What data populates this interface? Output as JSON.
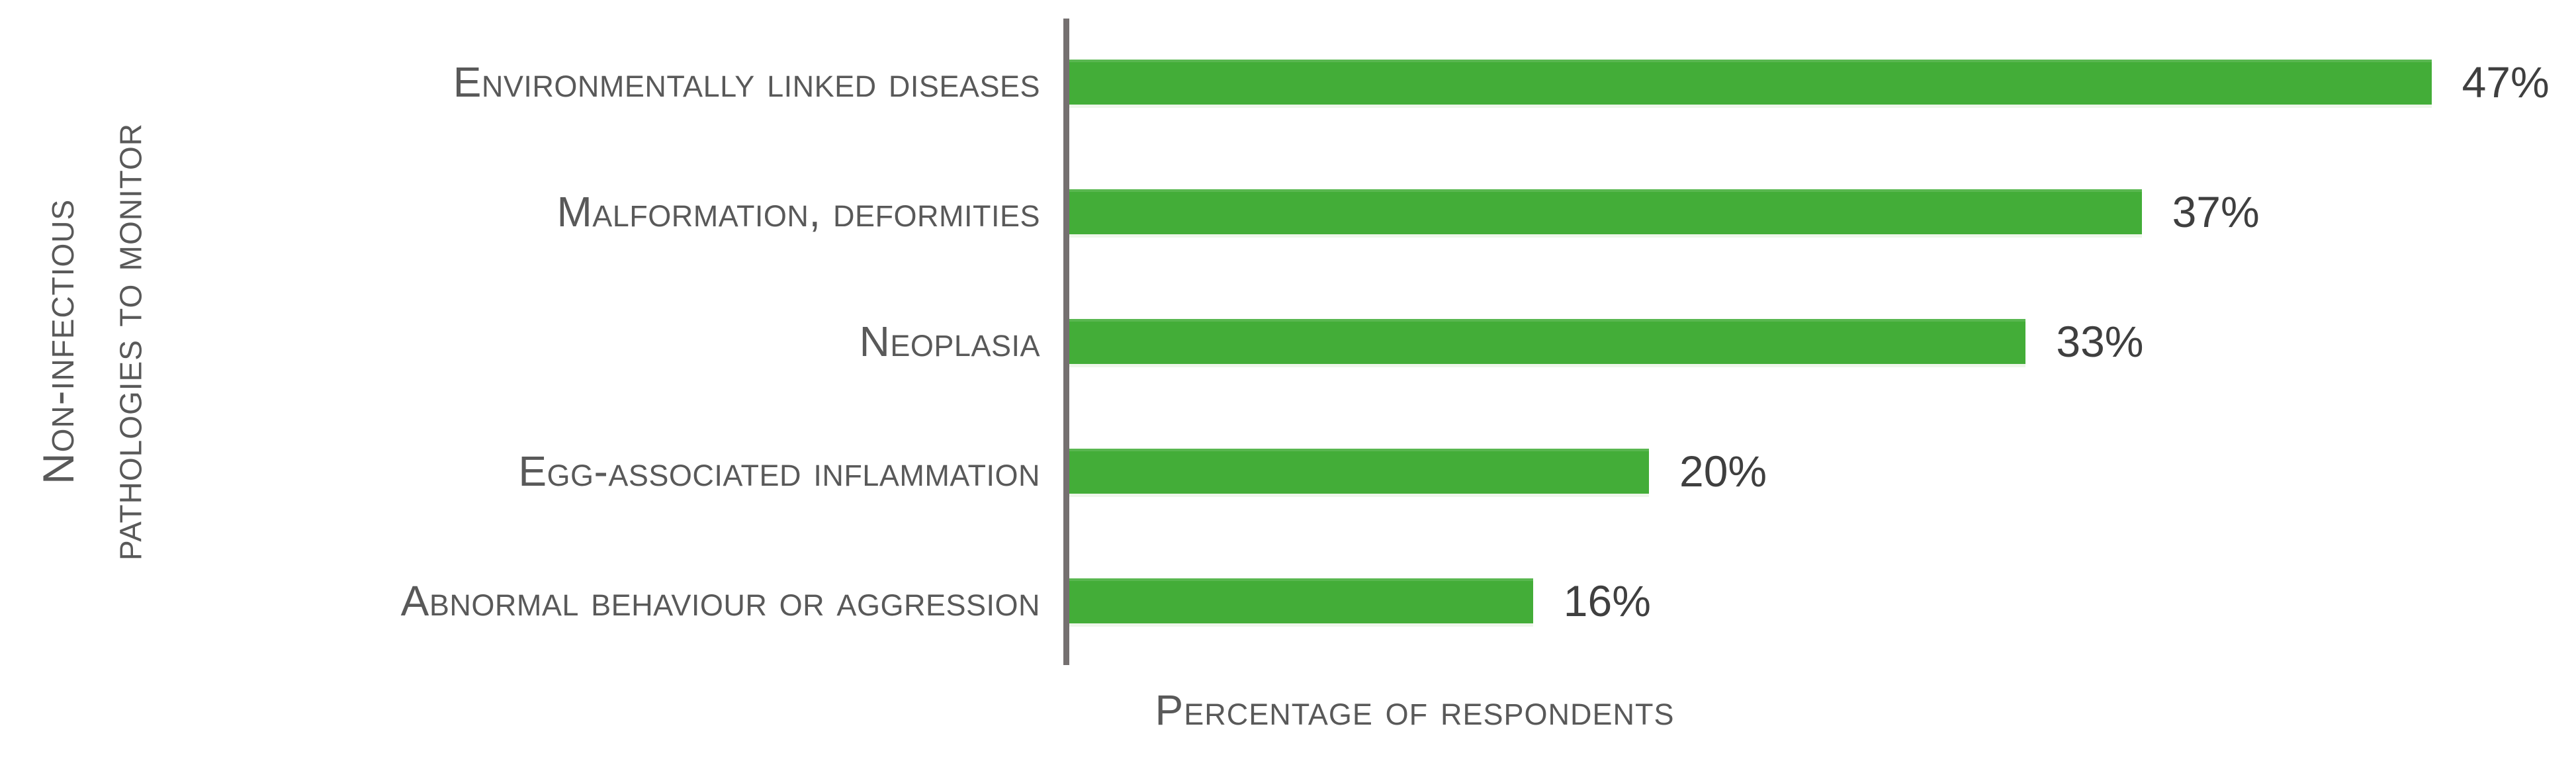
{
  "chart_data": {
    "type": "bar",
    "orientation": "horizontal",
    "title": "",
    "categories": [
      "Environmentally linked diseases",
      "Malformation, deformities",
      "Neoplasia",
      "Egg-associated inflammation",
      "Abnormal behaviour or aggression"
    ],
    "values": [
      47,
      37,
      33,
      20,
      16
    ],
    "value_labels": [
      "47%",
      "37%",
      "33%",
      "20%",
      "16%"
    ],
    "xlabel": "Percentage of respondents",
    "ylabel": "Non-infectious pathologies to monitor",
    "ylabel_display": "Non-infectious\npathologies to monitor",
    "xlim": [
      0,
      52
    ],
    "grid": false,
    "legend": false,
    "data_labels": "outside-end",
    "bar_color": "#43ad38",
    "axis_line_color": "#757070",
    "category_label_color": "#595959",
    "value_label_color": "#3f3f3f"
  }
}
